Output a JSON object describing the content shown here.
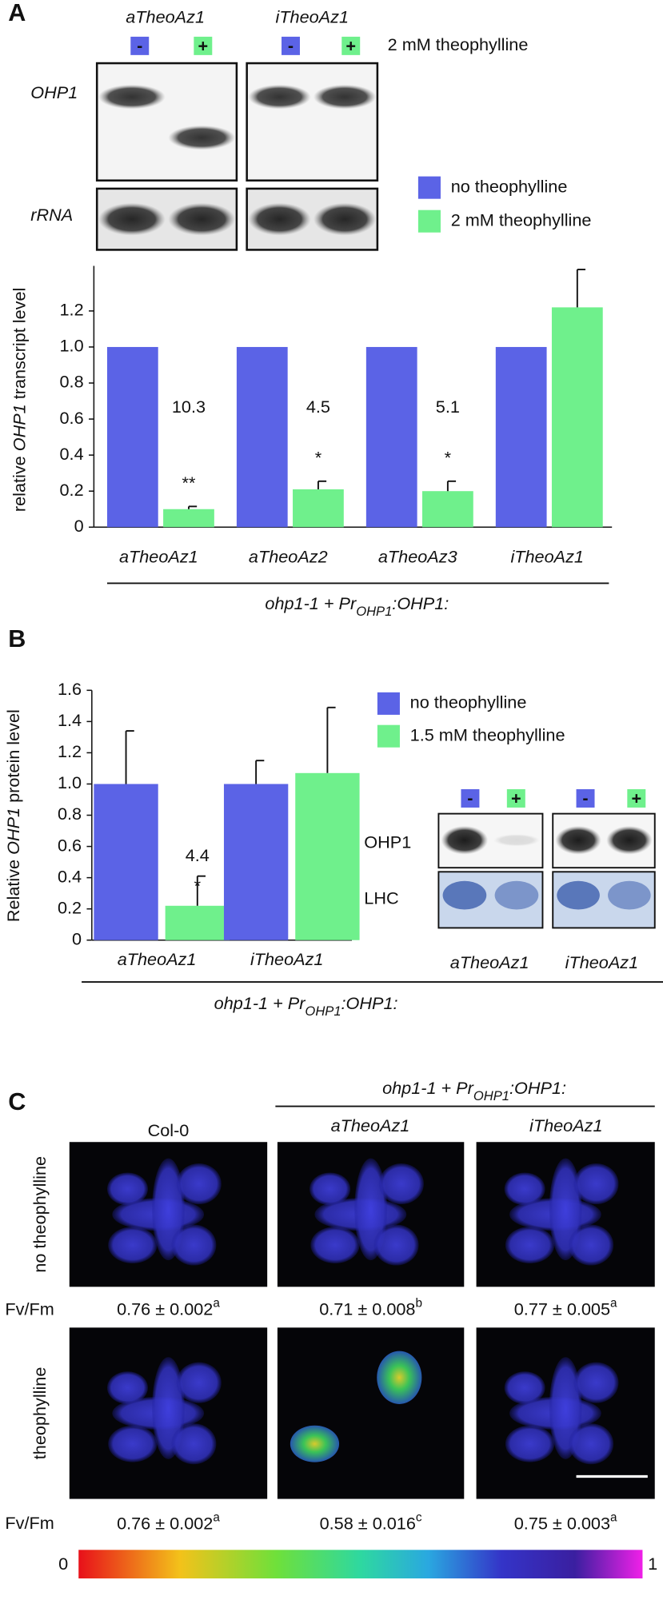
{
  "panel_labels": [
    "A",
    "B",
    "C"
  ],
  "blot_a": {
    "lines": [
      "aTheoAz1",
      "iTheoAz1"
    ],
    "signs": [
      "-",
      "+"
    ],
    "treatment": "2 mM theophylline",
    "rows": [
      "OHP1",
      "rRNA"
    ]
  },
  "blot_b": {
    "lines": [
      "aTheoAz1",
      "iTheoAz1"
    ],
    "signs": [
      "-",
      "+"
    ],
    "rows": [
      "OHP1",
      "LHC"
    ]
  },
  "chart_data": [
    {
      "type": "bar",
      "ylabel_parts": [
        "relative ",
        "OHP1",
        " transcript level"
      ],
      "xlabel": {
        "prefix": "ohp1-1 + Pr",
        "sub": "OHP1",
        "suffix": ":OHP1:"
      },
      "categories": [
        "aTheoAz1",
        "aTheoAz2",
        "aTheoAz3",
        "iTheoAz1"
      ],
      "series": [
        {
          "name": "no theophylline",
          "color": "#5b63e6",
          "values": [
            1,
            1,
            1,
            1
          ]
        },
        {
          "name": "2 mM theophylline",
          "color": "#6ff08c",
          "values": [
            0.1,
            0.21,
            0.2,
            1.22
          ],
          "errors": [
            0.015,
            0.045,
            0.055,
            0.21
          ],
          "fold_labels": [
            "10.3",
            "4.5",
            "5.1",
            null
          ],
          "significance": [
            "**",
            "*",
            "*",
            null
          ]
        }
      ],
      "ylim": [
        0,
        1.45
      ],
      "yticks": [
        0,
        0.2,
        0.4,
        0.6,
        0.8,
        {
          "value": 1,
          "label": "1.0"
        },
        1.2
      ]
    },
    {
      "type": "bar",
      "ylabel_parts": [
        "Relative ",
        "OHP1",
        " protein level"
      ],
      "xlabel": {
        "prefix": "ohp1-1 + Pr",
        "sub": "OHP1",
        "suffix": ":OHP1:"
      },
      "categories": [
        "aTheoAz1",
        "iTheoAz1"
      ],
      "series": [
        {
          "name": "no theophylline",
          "color": "#5b63e6",
          "values": [
            1,
            1
          ],
          "errors": [
            0.34,
            0.15
          ]
        },
        {
          "name": "1.5 mM theophylline",
          "color": "#6ff08c",
          "values": [
            0.22,
            1.07
          ],
          "errors": [
            0.19,
            0.42
          ],
          "fold_labels": [
            "4.4",
            null
          ],
          "significance": [
            "*",
            null
          ]
        }
      ],
      "ylim": [
        0,
        1.6
      ],
      "yticks": [
        0,
        0.2,
        0.4,
        0.6,
        0.8,
        {
          "value": 1,
          "label": "1.0"
        },
        1.2,
        1.4,
        1.6
      ]
    }
  ],
  "panel_c": {
    "genotype": {
      "prefix": "ohp1-1 + Pr",
      "sub": "OHP1",
      "suffix": ":OHP1:"
    },
    "columns": [
      "Col-0",
      "aTheoAz1",
      "iTheoAz1"
    ],
    "rows": [
      "no theophylline",
      "theophylline"
    ],
    "metric": "Fv/Fm",
    "values": [
      [
        "0.76 ± 0.002",
        "0.71 ± 0.008",
        "0.77 ± 0.005"
      ],
      [
        "0.76 ± 0.002",
        "0.58 ± 0.016",
        "0.75 ± 0.003"
      ]
    ],
    "letters": [
      [
        "a",
        "b",
        "a"
      ],
      [
        "a",
        "c",
        "a"
      ]
    ],
    "colorbar": [
      "0",
      "1"
    ]
  }
}
